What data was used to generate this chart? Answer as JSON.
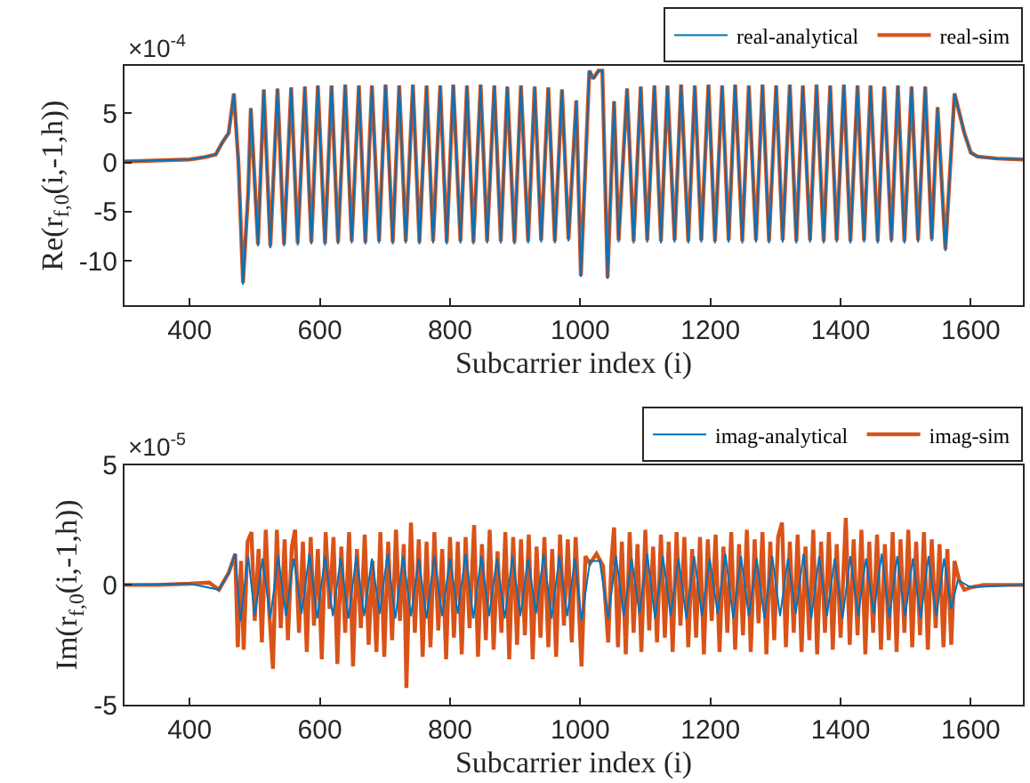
{
  "chart_data": [
    {
      "type": "line",
      "xlabel": "Subcarrier index (i)",
      "ylabel": "Re(r$_{f,0}$(i,-1,h))",
      "annotations": [
        "×10$^{-4}$"
      ],
      "xlim": [
        300,
        1680
      ],
      "ylim": [
        -14.5,
        9.8
      ],
      "xticks": [
        400,
        600,
        800,
        1000,
        1200,
        1400,
        1600
      ],
      "yticks": [
        5,
        0,
        -5,
        -10
      ],
      "legend": "top right",
      "series": [
        {
          "name": "real-analytical",
          "color": "#0072bd",
          "x": [
            300,
            400,
            420,
            440,
            450,
            460,
            468,
            475,
            482,
            490,
            494,
            500,
            505,
            514,
            524,
            535,
            545,
            556,
            566,
            577,
            587,
            597,
            608,
            618,
            628,
            639,
            649,
            660,
            670,
            680,
            691,
            701,
            712,
            722,
            732,
            743,
            753,
            764,
            774,
            785,
            795,
            805,
            816,
            826,
            836,
            847,
            857,
            868,
            878,
            888,
            899,
            909,
            920,
            930,
            940,
            951,
            961,
            972,
            982,
            994,
            1001,
            1014,
            1020,
            1028,
            1034,
            1042,
            1052,
            1059,
            1072,
            1082,
            1093,
            1103,
            1114,
            1124,
            1134,
            1145,
            1155,
            1166,
            1176,
            1186,
            1197,
            1207,
            1218,
            1228,
            1238,
            1249,
            1259,
            1270,
            1280,
            1290,
            1301,
            1311,
            1322,
            1332,
            1342,
            1353,
            1363,
            1374,
            1384,
            1394,
            1405,
            1415,
            1426,
            1436,
            1446,
            1457,
            1467,
            1478,
            1488,
            1498,
            1509,
            1519,
            1530,
            1540,
            1549,
            1561,
            1575,
            1590,
            1600,
            1610,
            1640,
            1680
          ],
          "values": [
            0.1,
            0.3,
            0.5,
            0.8,
            2,
            3,
            7,
            0,
            -12.4,
            -3,
            5.5,
            -2,
            -8.5,
            7.4,
            -8.7,
            7.5,
            -8.5,
            7.6,
            -8.4,
            7.7,
            -8.3,
            7.8,
            -8.4,
            7.8,
            -8.3,
            7.9,
            -8.2,
            7.8,
            -8.3,
            7.8,
            -8.2,
            7.9,
            -8.3,
            7.8,
            -8.2,
            7.9,
            -8.3,
            7.8,
            -8.2,
            7.8,
            -8.3,
            7.9,
            -8.2,
            7.8,
            -8.3,
            7.9,
            -8.2,
            7.8,
            -8.2,
            7.7,
            -8.3,
            7.8,
            -8.2,
            7.7,
            -8.1,
            7.6,
            -8.2,
            7.4,
            -8.0,
            6.3,
            -11.6,
            9.3,
            8.5,
            9.3,
            9.3,
            -11.8,
            6.2,
            -8.1,
            7.5,
            -8.2,
            7.7,
            -8.1,
            7.8,
            -8.2,
            7.8,
            -8.1,
            7.9,
            -8.2,
            7.8,
            -8.1,
            7.9,
            -8.2,
            7.8,
            -8.1,
            7.9,
            -8.2,
            7.8,
            -8.1,
            7.9,
            -8.2,
            7.8,
            -8.1,
            7.9,
            -8.2,
            7.8,
            -8.1,
            7.9,
            -8.2,
            7.8,
            -8.1,
            7.9,
            -8.2,
            7.8,
            -8.1,
            7.8,
            -8.2,
            7.7,
            -8.1,
            7.8,
            -8.2,
            7.7,
            -8.1,
            7.7,
            -8.0,
            5.6,
            -9.0,
            7.0,
            3,
            1,
            0.6,
            0.4,
            0.3
          ]
        },
        {
          "name": "real-sim",
          "color": "#d95319",
          "x": [
            300,
            400,
            420,
            440,
            450,
            460,
            468,
            475,
            482,
            490,
            494,
            500,
            505,
            514,
            524,
            535,
            545,
            556,
            566,
            577,
            587,
            597,
            608,
            618,
            628,
            639,
            649,
            660,
            670,
            680,
            691,
            701,
            712,
            722,
            732,
            743,
            753,
            764,
            774,
            785,
            795,
            805,
            816,
            826,
            836,
            847,
            857,
            868,
            878,
            888,
            899,
            909,
            920,
            930,
            940,
            951,
            961,
            972,
            982,
            994,
            1001,
            1014,
            1020,
            1028,
            1034,
            1042,
            1052,
            1059,
            1072,
            1082,
            1093,
            1103,
            1114,
            1124,
            1134,
            1145,
            1155,
            1166,
            1176,
            1186,
            1197,
            1207,
            1218,
            1228,
            1238,
            1249,
            1259,
            1270,
            1280,
            1290,
            1301,
            1311,
            1322,
            1332,
            1342,
            1353,
            1363,
            1374,
            1384,
            1394,
            1405,
            1415,
            1426,
            1436,
            1446,
            1457,
            1467,
            1478,
            1488,
            1498,
            1509,
            1519,
            1530,
            1540,
            1549,
            1561,
            1575,
            1590,
            1600,
            1610,
            1640,
            1680
          ],
          "values": [
            0.1,
            0.3,
            0.5,
            0.8,
            2,
            3,
            7,
            0,
            -12.2,
            -3,
            5.5,
            -2,
            -8.3,
            7.4,
            -8.5,
            7.5,
            -8.3,
            7.6,
            -8.2,
            7.7,
            -8.1,
            7.8,
            -8.2,
            7.8,
            -8.1,
            7.9,
            -8.0,
            7.8,
            -8.1,
            7.8,
            -8.0,
            7.9,
            -8.1,
            7.8,
            -8.0,
            7.9,
            -8.1,
            7.8,
            -8.0,
            7.8,
            -8.1,
            7.9,
            -8.0,
            7.8,
            -8.1,
            7.9,
            -8.0,
            7.8,
            -8.0,
            7.7,
            -8.1,
            7.8,
            -8.0,
            7.7,
            -7.9,
            7.6,
            -8.0,
            7.4,
            -7.8,
            6.3,
            -11.5,
            9.3,
            8.5,
            9.3,
            9.3,
            -11.7,
            6.2,
            -7.9,
            7.5,
            -8.0,
            7.7,
            -7.9,
            7.8,
            -8.0,
            7.8,
            -7.9,
            7.9,
            -8.0,
            7.8,
            -7.9,
            7.9,
            -8.0,
            7.8,
            -7.9,
            7.9,
            -8.0,
            7.8,
            -7.9,
            7.9,
            -8.0,
            7.8,
            -7.9,
            7.9,
            -8.0,
            7.8,
            -7.9,
            7.9,
            -8.0,
            7.8,
            -7.9,
            7.9,
            -8.0,
            7.8,
            -7.9,
            7.8,
            -8.0,
            7.7,
            -7.9,
            7.8,
            -8.0,
            7.7,
            -7.9,
            7.7,
            -7.8,
            5.6,
            -8.8,
            7.0,
            3,
            1,
            0.6,
            0.4,
            0.3
          ]
        }
      ]
    },
    {
      "type": "line",
      "xlabel": "Subcarrier index (i)",
      "ylabel": "Im(r$_{f,0}$(i,-1,h))",
      "annotations": [
        "×10$^{-5}$"
      ],
      "xlim": [
        300,
        1680
      ],
      "ylim": [
        -5,
        5
      ],
      "xticks": [
        400,
        600,
        800,
        1000,
        1200,
        1400,
        1600
      ],
      "yticks": [
        5,
        0,
        -5
      ],
      "legend": "top right",
      "series": [
        {
          "name": "imag-analytical",
          "color": "#0072bd",
          "x": [
            300,
            400,
            445,
            460,
            470,
            478,
            490,
            500,
            512,
            524,
            536,
            548,
            560,
            572,
            584,
            596,
            608,
            620,
            632,
            644,
            656,
            668,
            680,
            692,
            704,
            716,
            728,
            740,
            752,
            764,
            776,
            788,
            800,
            812,
            824,
            836,
            848,
            860,
            872,
            884,
            896,
            908,
            920,
            932,
            944,
            956,
            968,
            980,
            992,
            1002,
            1015,
            1030,
            1043,
            1055,
            1067,
            1079,
            1091,
            1103,
            1115,
            1127,
            1139,
            1151,
            1163,
            1175,
            1187,
            1199,
            1211,
            1223,
            1235,
            1247,
            1259,
            1271,
            1283,
            1295,
            1307,
            1319,
            1331,
            1343,
            1355,
            1367,
            1379,
            1391,
            1403,
            1415,
            1427,
            1439,
            1451,
            1463,
            1475,
            1487,
            1499,
            1511,
            1523,
            1535,
            1547,
            1559,
            1570,
            1580,
            1600,
            1680
          ],
          "values": [
            0,
            0.05,
            -0.2,
            0.5,
            1.3,
            -1.5,
            1.2,
            -1.3,
            1.1,
            -1.4,
            1.2,
            -1.3,
            1.1,
            -1.2,
            1.3,
            -1.4,
            1.2,
            -1.3,
            1.1,
            -1.4,
            1.2,
            -1.3,
            1.1,
            -1.2,
            1.3,
            -1.4,
            1.2,
            -1.3,
            1.1,
            -1.4,
            1.2,
            -1.3,
            1.1,
            -1.2,
            1.3,
            -1.4,
            1.2,
            -1.3,
            1.1,
            -1.4,
            1.2,
            -1.3,
            1.1,
            -1.2,
            1.3,
            -1.4,
            1.2,
            -1.3,
            1.1,
            -1.5,
            1.0,
            1.0,
            -1.4,
            1.2,
            -1.3,
            1.1,
            -1.2,
            1.3,
            -1.4,
            1.2,
            -1.3,
            1.1,
            -1.4,
            1.2,
            -1.3,
            1.1,
            -1.2,
            1.3,
            -1.4,
            1.2,
            -1.3,
            1.1,
            -1.4,
            1.2,
            -1.3,
            1.1,
            -1.2,
            1.3,
            -1.4,
            1.2,
            -1.3,
            1.1,
            -1.4,
            1.2,
            -1.3,
            1.1,
            -1.2,
            1.3,
            -1.4,
            1.2,
            -1.3,
            1.1,
            -1.4,
            1.2,
            -1.3,
            1.1,
            -1.0,
            0.2,
            -0.1,
            0
          ]
        },
        {
          "name": "imag-sim",
          "color": "#d95319",
          "x": [
            300,
            350,
            400,
            430,
            445,
            460,
            470,
            474,
            479,
            483,
            489,
            495,
            500,
            506,
            511,
            517,
            522,
            528,
            534,
            540,
            546,
            551,
            557,
            562,
            568,
            574,
            580,
            586,
            591,
            597,
            603,
            609,
            615,
            621,
            627,
            633,
            639,
            645,
            651,
            657,
            663,
            669,
            675,
            681,
            687,
            693,
            699,
            705,
            711,
            717,
            723,
            729,
            733,
            740,
            746,
            752,
            758,
            764,
            770,
            776,
            782,
            788,
            794,
            800,
            806,
            812,
            818,
            824,
            830,
            837,
            843,
            849,
            855,
            861,
            867,
            873,
            879,
            885,
            891,
            897,
            903,
            909,
            915,
            921,
            927,
            933,
            939,
            945,
            951,
            957,
            963,
            969,
            975,
            981,
            987,
            993,
            1002,
            1008,
            1015,
            1025,
            1035,
            1043,
            1048,
            1052,
            1058,
            1064,
            1070,
            1076,
            1082,
            1088,
            1094,
            1100,
            1106,
            1112,
            1118,
            1124,
            1130,
            1136,
            1142,
            1148,
            1154,
            1160,
            1166,
            1172,
            1178,
            1184,
            1190,
            1196,
            1202,
            1208,
            1214,
            1220,
            1226,
            1232,
            1238,
            1244,
            1250,
            1256,
            1262,
            1268,
            1274,
            1280,
            1286,
            1292,
            1298,
            1304,
            1310,
            1316,
            1322,
            1328,
            1334,
            1340,
            1346,
            1352,
            1358,
            1364,
            1370,
            1376,
            1382,
            1388,
            1394,
            1400,
            1408,
            1414,
            1420,
            1426,
            1432,
            1438,
            1444,
            1450,
            1456,
            1462,
            1468,
            1474,
            1480,
            1486,
            1492,
            1498,
            1504,
            1510,
            1516,
            1522,
            1528,
            1534,
            1540,
            1546,
            1552,
            1558,
            1564,
            1570,
            1575,
            1582,
            1590,
            1600,
            1620,
            1680
          ],
          "values": [
            0,
            0,
            0.05,
            0.1,
            -0.2,
            0.5,
            1.3,
            -2.6,
            1.0,
            -2.7,
            1.8,
            2.2,
            -1.5,
            1.5,
            -2.4,
            2.3,
            -1.0,
            -3.5,
            2.3,
            -1.8,
            1.9,
            -2.3,
            1.6,
            2.3,
            -2.0,
            1.8,
            -2.8,
            2.0,
            -1.7,
            1.5,
            -3.1,
            2.2,
            -1.0,
            2.0,
            -3.3,
            1.6,
            -2.0,
            2.2,
            -3.4,
            1.5,
            -1.8,
            2.1,
            -2.5,
            1.0,
            -2.8,
            2.2,
            -3.0,
            1.8,
            -2.3,
            2.3,
            -1.5,
            1.7,
            -4.3,
            2.6,
            -2.0,
            1.9,
            -3.0,
            1.8,
            -2.6,
            2.2,
            -1.9,
            1.5,
            -3.1,
            2.0,
            -2.2,
            1.8,
            -2.9,
            2.0,
            -1.8,
            2.5,
            -3.0,
            1.7,
            -2.3,
            2.3,
            -2.7,
            1.4,
            -2.0,
            2.2,
            -3.1,
            2.0,
            -2.5,
            1.9,
            -2.1,
            2.1,
            -3.1,
            1.6,
            -2.2,
            2.0,
            -2.6,
            1.5,
            -3.0,
            2.1,
            -1.7,
            1.9,
            -2.4,
            2.0,
            -3.4,
            1.2,
            0.9,
            1.3,
            0.8,
            -2.4,
            1.0,
            2.4,
            -2.6,
            1.8,
            -2.9,
            2.2,
            -2.0,
            1.7,
            -2.8,
            2.3,
            -1.9,
            1.6,
            -2.4,
            2.1,
            -2.2,
            1.8,
            -2.8,
            2.2,
            -1.7,
            2.0,
            -2.6,
            1.5,
            -2.2,
            2.0,
            -2.9,
            1.9,
            -1.5,
            2.1,
            -2.8,
            1.6,
            -2.0,
            2.2,
            -2.7,
            1.7,
            -2.1,
            2.3,
            -2.8,
            1.9,
            -1.6,
            2.2,
            -2.9,
            1.8,
            -2.3,
            2.0,
            2.6,
            -2.6,
            1.8,
            -2.0,
            2.1,
            -2.8,
            1.6,
            -2.3,
            2.3,
            -2.9,
            1.8,
            -2.0,
            2.2,
            -2.7,
            1.7,
            -2.2,
            2.8,
            -2.5,
            1.9,
            -2.1,
            2.3,
            -2.9,
            1.8,
            -2.0,
            2.1,
            -2.7,
            1.7,
            -2.3,
            2.2,
            -2.8,
            1.9,
            -2.0,
            2.3,
            -2.6,
            1.8,
            -2.1,
            2.2,
            -2.7,
            1.9,
            -1.8,
            1.7,
            -2.6,
            1.5,
            -2.5,
            1.0,
            0.2,
            -0.2,
            -0.1,
            0,
            0
          ]
        }
      ]
    }
  ]
}
